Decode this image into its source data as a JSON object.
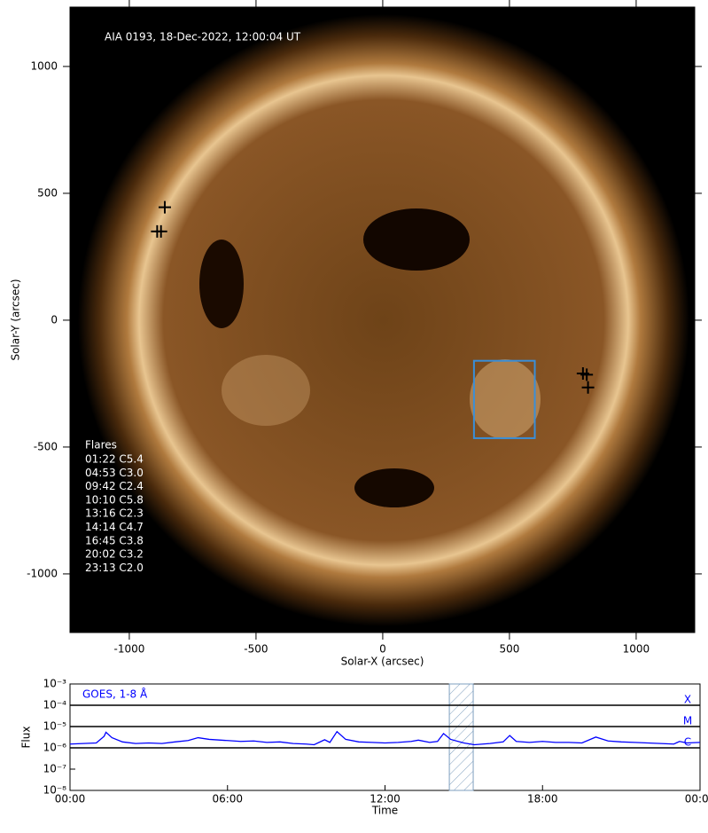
{
  "chart_data": [
    {
      "type": "image",
      "annotation": "AIA 0193, 18-Dec-2022, 12:00:04 UT",
      "xlabel": "Solar-X (arcsec)",
      "ylabel": "Solar-Y (arcsec)",
      "xlim": [
        -1234,
        1231
      ],
      "ylim": [
        -1231,
        1234
      ],
      "xticks": [
        -1000,
        -500,
        0,
        500,
        1000
      ],
      "yticks": [
        -1000,
        -500,
        0,
        500,
        1000
      ],
      "legend_title": "Flares",
      "flares": [
        "01:22 C5.4",
        "04:53 C3.0",
        "09:42 C2.4",
        "10:10 C5.8",
        "13:16 C2.3",
        "14:14 C4.7",
        "16:45 C3.8",
        "20:02 C3.2",
        "23:13 C2.0"
      ],
      "markers": {
        "x": [
          -860,
          -890,
          -875,
          790,
          805,
          810
        ],
        "y": [
          445,
          350,
          350,
          -210,
          -215,
          -265
        ]
      },
      "box": {
        "x": [
          360,
          600
        ],
        "y": [
          -465,
          -160
        ]
      }
    },
    {
      "type": "line",
      "annotation": "GOES, 1-8 Å",
      "xlabel": "Time",
      "ylabel": "Flux",
      "xlim": [
        0,
        24
      ],
      "ylim": [
        1e-08,
        0.001
      ],
      "log_y": true,
      "xticks": [
        {
          "value": 0,
          "label": "00:00"
        },
        {
          "value": 6,
          "label": "06:00"
        },
        {
          "value": 12,
          "label": "12:00"
        },
        {
          "value": 18,
          "label": "18:00"
        },
        {
          "value": 24,
          "label": "00:00"
        }
      ],
      "yticks": [
        {
          "value": 1e-08,
          "label": "10⁻⁸"
        },
        {
          "value": 1e-07,
          "label": "10⁻⁷"
        },
        {
          "value": 1e-06,
          "label": "10⁻⁶"
        },
        {
          "value": 1e-05,
          "label": "10⁻⁵"
        },
        {
          "value": 0.0001,
          "label": "10⁻⁴"
        },
        {
          "value": 0.001,
          "label": "10⁻³"
        }
      ],
      "levels": {
        "values": [
          0.0001,
          1e-05,
          1e-06
        ],
        "labels": [
          "X",
          "M",
          "C"
        ]
      },
      "band": [
        14.45,
        15.36
      ],
      "series": [
        {
          "name": "GOES, 1-8 Å",
          "color": "#0000ff",
          "x": [
            0,
            0.5,
            1.0,
            1.3,
            1.37,
            1.6,
            2.0,
            2.5,
            3.0,
            3.5,
            4.0,
            4.5,
            4.88,
            5.3,
            6.0,
            6.5,
            7.0,
            7.5,
            8.0,
            8.5,
            9.0,
            9.3,
            9.7,
            9.9,
            10.17,
            10.5,
            11.0,
            11.5,
            12.0,
            12.5,
            13.0,
            13.27,
            13.7,
            14.0,
            14.23,
            14.5,
            15.0,
            15.4,
            16.0,
            16.5,
            16.75,
            17.0,
            17.5,
            18.0,
            18.5,
            19.0,
            19.5,
            20.03,
            20.5,
            21.0,
            21.5,
            22.0,
            22.5,
            23.0,
            23.22,
            23.5,
            24.0
          ],
          "values": [
            1.5e-06,
            1.6e-06,
            1.7e-06,
            3.5e-06,
            5.4e-06,
            3e-06,
            1.9e-06,
            1.6e-06,
            1.7e-06,
            1.6e-06,
            1.9e-06,
            2.2e-06,
            3e-06,
            2.5e-06,
            2.2e-06,
            2e-06,
            2.1e-06,
            1.8e-06,
            1.9e-06,
            1.6e-06,
            1.5e-06,
            1.4e-06,
            2.4e-06,
            1.8e-06,
            5.8e-06,
            2.5e-06,
            1.9e-06,
            1.8e-06,
            1.7e-06,
            1.8e-06,
            2e-06,
            2.3e-06,
            1.8e-06,
            2e-06,
            4.7e-06,
            2.5e-06,
            1.7e-06,
            1.4e-06,
            1.6e-06,
            1.9e-06,
            3.8e-06,
            2e-06,
            1.8e-06,
            2e-06,
            1.8e-06,
            1.8e-06,
            1.7e-06,
            3.2e-06,
            2.1e-06,
            1.9e-06,
            1.8e-06,
            1.7e-06,
            1.6e-06,
            1.5e-06,
            2e-06,
            1.7e-06,
            1.8e-06
          ]
        }
      ]
    }
  ]
}
